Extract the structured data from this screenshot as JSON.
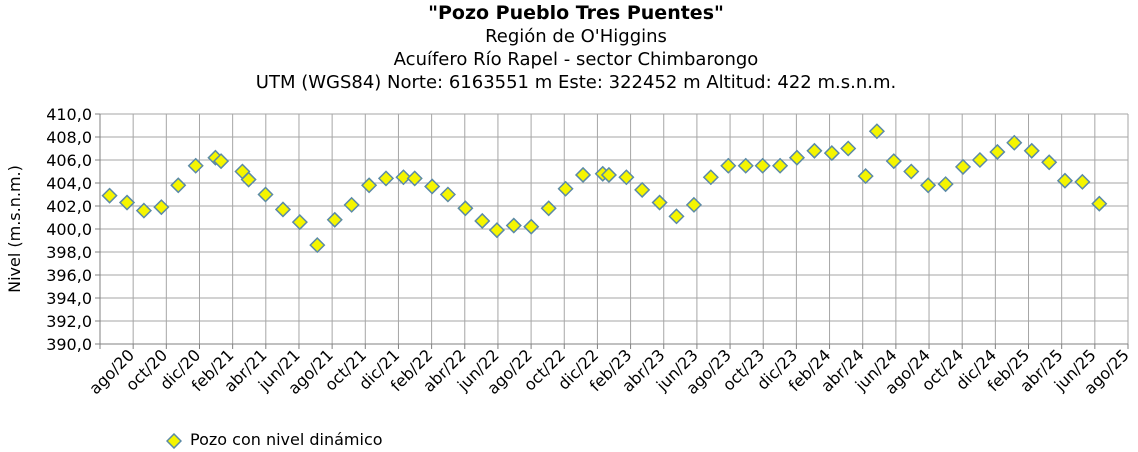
{
  "chart_data": {
    "type": "scatter",
    "title": "\"Pozo Pueblo Tres Puentes\"",
    "subtitles": [
      "Región de O'Higgins",
      "Acuífero Río Rapel - sector Chimbarongo",
      "UTM (WGS84) Norte: 6163551 m Este: 322452 m    Altitud: 422 m.s.n.m."
    ],
    "ylabel": "Nivel (m.s.n.m.)",
    "xlabel": "",
    "ylim": [
      390,
      410
    ],
    "y_ticks": [
      "390,0",
      "392,0",
      "394,0",
      "396,0",
      "398,0",
      "400,0",
      "402,0",
      "404,0",
      "406,0",
      "408,0",
      "410,0"
    ],
    "x_tick_labels": [
      "ago/20",
      "oct/20",
      "dic/20",
      "feb/21",
      "abr/21",
      "jun/21",
      "ago/21",
      "oct/21",
      "dic/21",
      "feb/22",
      "abr/22",
      "jun/22",
      "ago/22",
      "oct/22",
      "dic/22",
      "feb/23",
      "abr/23",
      "jun/23",
      "ago/23",
      "oct/23",
      "dic/23",
      "feb/24",
      "abr/24",
      "jun/24",
      "ago/24",
      "oct/24",
      "dic/24",
      "feb/25",
      "abr/25",
      "jun/25",
      "ago/25"
    ],
    "grid": true,
    "legend_position": "bottom-left",
    "marker_color": "#f5f500",
    "marker_edge_color": "#5b8aa6",
    "series": [
      {
        "name": "Pozo con nivel dinámico",
        "points": [
          {
            "x": "2020-08-01",
            "y": 402.9
          },
          {
            "x": "2020-09-01",
            "y": 402.3
          },
          {
            "x": "2020-10-01",
            "y": 401.6
          },
          {
            "x": "2020-11-01",
            "y": 401.9
          },
          {
            "x": "2020-12-01",
            "y": 403.8
          },
          {
            "x": "2021-01-01",
            "y": 405.5
          },
          {
            "x": "2021-02-05",
            "y": 406.2
          },
          {
            "x": "2021-02-15",
            "y": 405.9
          },
          {
            "x": "2021-03-25",
            "y": 405.0
          },
          {
            "x": "2021-04-05",
            "y": 404.3
          },
          {
            "x": "2021-05-05",
            "y": 403.0
          },
          {
            "x": "2021-06-05",
            "y": 401.7
          },
          {
            "x": "2021-07-05",
            "y": 400.6
          },
          {
            "x": "2021-08-05",
            "y": 398.6
          },
          {
            "x": "2021-09-05",
            "y": 400.8
          },
          {
            "x": "2021-10-05",
            "y": 402.1
          },
          {
            "x": "2021-11-05",
            "y": 403.8
          },
          {
            "x": "2021-12-05",
            "y": 404.4
          },
          {
            "x": "2022-01-05",
            "y": 404.5
          },
          {
            "x": "2022-01-25",
            "y": 404.4
          },
          {
            "x": "2022-02-25",
            "y": 403.7
          },
          {
            "x": "2022-03-25",
            "y": 403.0
          },
          {
            "x": "2022-04-25",
            "y": 401.8
          },
          {
            "x": "2022-05-25",
            "y": 400.7
          },
          {
            "x": "2022-06-20",
            "y": 399.9
          },
          {
            "x": "2022-07-20",
            "y": 400.3
          },
          {
            "x": "2022-08-20",
            "y": 400.2
          },
          {
            "x": "2022-09-20",
            "y": 401.8
          },
          {
            "x": "2022-10-20",
            "y": 403.5
          },
          {
            "x": "2022-11-20",
            "y": 404.7
          },
          {
            "x": "2022-12-25",
            "y": 404.8
          },
          {
            "x": "2023-01-05",
            "y": 404.7
          },
          {
            "x": "2023-02-05",
            "y": 404.5
          },
          {
            "x": "2023-03-05",
            "y": 403.4
          },
          {
            "x": "2023-04-05",
            "y": 402.3
          },
          {
            "x": "2023-05-05",
            "y": 401.1
          },
          {
            "x": "2023-06-05",
            "y": 402.1
          },
          {
            "x": "2023-07-05",
            "y": 404.5
          },
          {
            "x": "2023-08-05",
            "y": 405.5
          },
          {
            "x": "2023-09-05",
            "y": 405.5
          },
          {
            "x": "2023-10-05",
            "y": 405.5
          },
          {
            "x": "2023-11-05",
            "y": 405.5
          },
          {
            "x": "2023-12-05",
            "y": 406.2
          },
          {
            "x": "2024-01-05",
            "y": 406.8
          },
          {
            "x": "2024-02-05",
            "y": 406.6
          },
          {
            "x": "2024-03-05",
            "y": 407.0
          },
          {
            "x": "2024-04-05",
            "y": 404.6
          },
          {
            "x": "2024-04-25",
            "y": 408.5
          },
          {
            "x": "2024-05-25",
            "y": 405.9
          },
          {
            "x": "2024-06-25",
            "y": 405.0
          },
          {
            "x": "2024-07-25",
            "y": 403.8
          },
          {
            "x": "2024-08-25",
            "y": 403.9
          },
          {
            "x": "2024-09-25",
            "y": 405.4
          },
          {
            "x": "2024-10-25",
            "y": 406.0
          },
          {
            "x": "2024-11-25",
            "y": 406.7
          },
          {
            "x": "2024-12-25",
            "y": 407.5
          },
          {
            "x": "2025-01-25",
            "y": 406.8
          },
          {
            "x": "2025-02-25",
            "y": 405.8
          },
          {
            "x": "2025-03-25",
            "y": 404.2
          },
          {
            "x": "2025-04-25",
            "y": 404.1
          },
          {
            "x": "2025-05-25",
            "y": 402.2
          }
        ]
      }
    ]
  }
}
